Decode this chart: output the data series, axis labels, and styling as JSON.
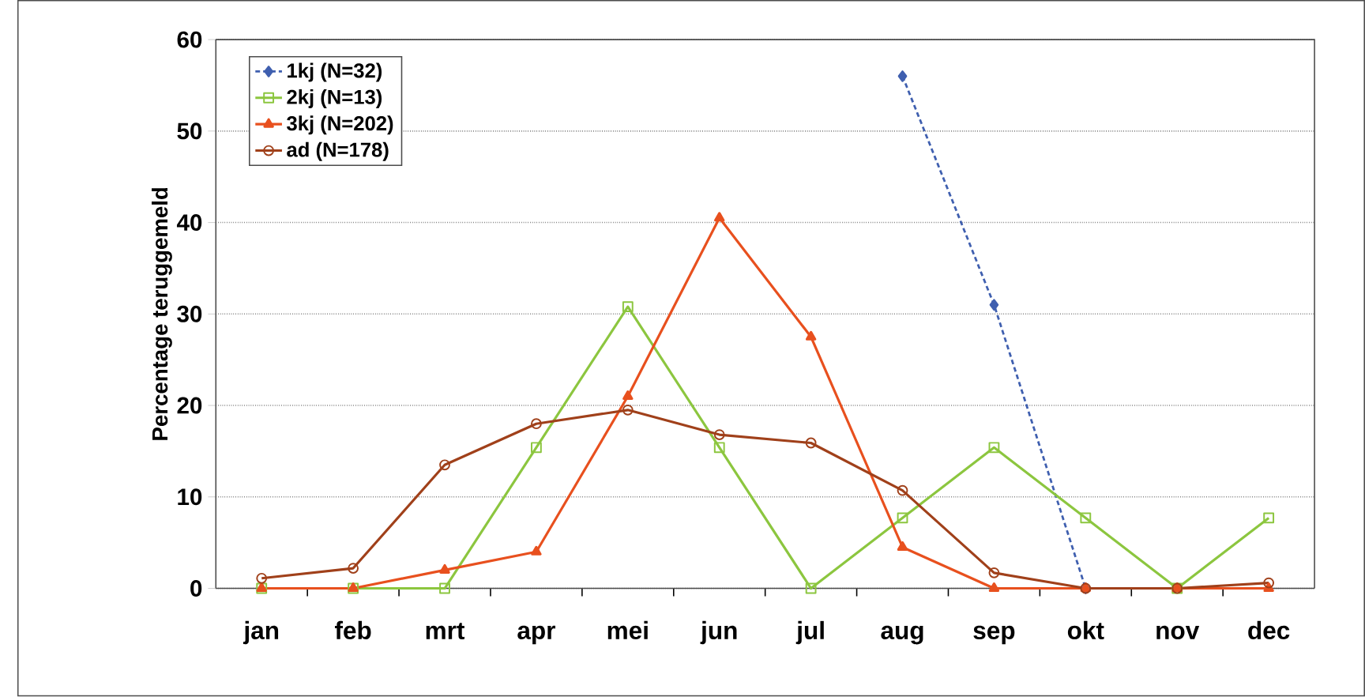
{
  "chart_data": {
    "type": "line",
    "ylabel": "Percentage teruggemeld",
    "categories": [
      "jan",
      "feb",
      "mrt",
      "apr",
      "mei",
      "jun",
      "jul",
      "aug",
      "sep",
      "okt",
      "nov",
      "dec"
    ],
    "series": [
      {
        "name": "1kj (N=32)",
        "color": "#3f5faf",
        "marker": "diamond",
        "line_style": "dashed",
        "values": [
          null,
          null,
          null,
          null,
          null,
          null,
          null,
          56,
          31,
          0,
          null,
          null
        ]
      },
      {
        "name": "2kj (N=13)",
        "color": "#8cc63f",
        "marker": "square",
        "values": [
          0,
          0,
          0,
          15.4,
          30.8,
          15.4,
          0,
          7.7,
          15.4,
          7.7,
          0,
          7.7
        ]
      },
      {
        "name": "3kj (N=202)",
        "color": "#e8501e",
        "marker": "triangle",
        "values": [
          0,
          0,
          2,
          4,
          21,
          40.5,
          27.5,
          4.5,
          0,
          0,
          0,
          0
        ]
      },
      {
        "name": "ad (N=178)",
        "color": "#a0401a",
        "marker": "circle",
        "values": [
          1.1,
          2.2,
          13.5,
          18,
          19.5,
          16.8,
          15.9,
          10.7,
          1.7,
          0,
          0,
          0.6
        ]
      }
    ],
    "ylim": [
      0,
      60
    ],
    "yticks": [
      0,
      10,
      20,
      30,
      40,
      50,
      60
    ],
    "grid": "y",
    "legend": "top left"
  }
}
